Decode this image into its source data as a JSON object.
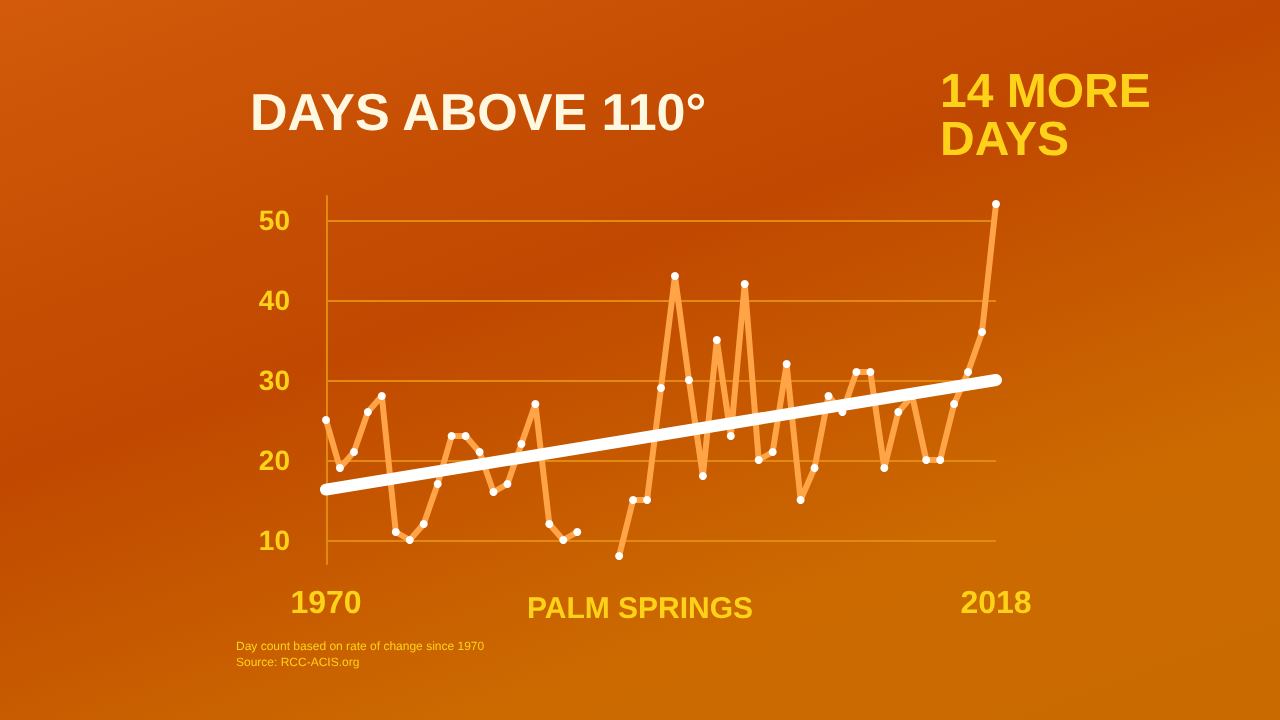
{
  "chart_data": {
    "type": "line",
    "title": "DAYS ABOVE 110°",
    "subtitle": "PALM SPRINGS",
    "annotations": [
      "14 MORE DAYS",
      "Day count based on rate of change since 1970",
      "Source: RCC-ACIS.org"
    ],
    "x": [
      1970,
      1971,
      1972,
      1973,
      1974,
      1975,
      1976,
      1977,
      1978,
      1979,
      1980,
      1981,
      1982,
      1983,
      1984,
      1985,
      1986,
      1987,
      1988,
      1989,
      1990,
      1991,
      1992,
      1993,
      1994,
      1995,
      1996,
      1997,
      1998,
      1999,
      2000,
      2001,
      2002,
      2003,
      2004,
      2005,
      2006,
      2007,
      2008,
      2009,
      2010,
      2011,
      2012,
      2013,
      2014,
      2015,
      2016,
      2017,
      2018
    ],
    "series": [
      {
        "color": "#ffa447",
        "marker": "circle",
        "values": [
          25,
          19,
          21,
          26,
          28,
          11,
          10,
          12,
          17,
          23,
          23,
          21,
          16,
          17,
          22,
          27,
          12,
          10,
          11,
          null,
          null,
          8,
          15,
          15,
          29,
          43,
          30,
          18,
          35,
          23,
          42,
          20,
          21,
          32,
          15,
          19,
          28,
          26,
          31,
          31,
          19,
          26,
          28,
          20,
          20,
          27,
          31,
          36,
          52
        ]
      },
      {
        "color": "#ffffff",
        "marker": "none",
        "x": [
          1970,
          2018
        ],
        "values": [
          16.3,
          30
        ]
      }
    ],
    "xlim": [
      1970,
      2018
    ],
    "xticks": [
      1970,
      2018
    ],
    "ylim": [
      7,
      53
    ],
    "yticks": [
      10,
      20,
      30,
      40,
      50
    ],
    "grid": "y",
    "line_style": "solid"
  }
}
